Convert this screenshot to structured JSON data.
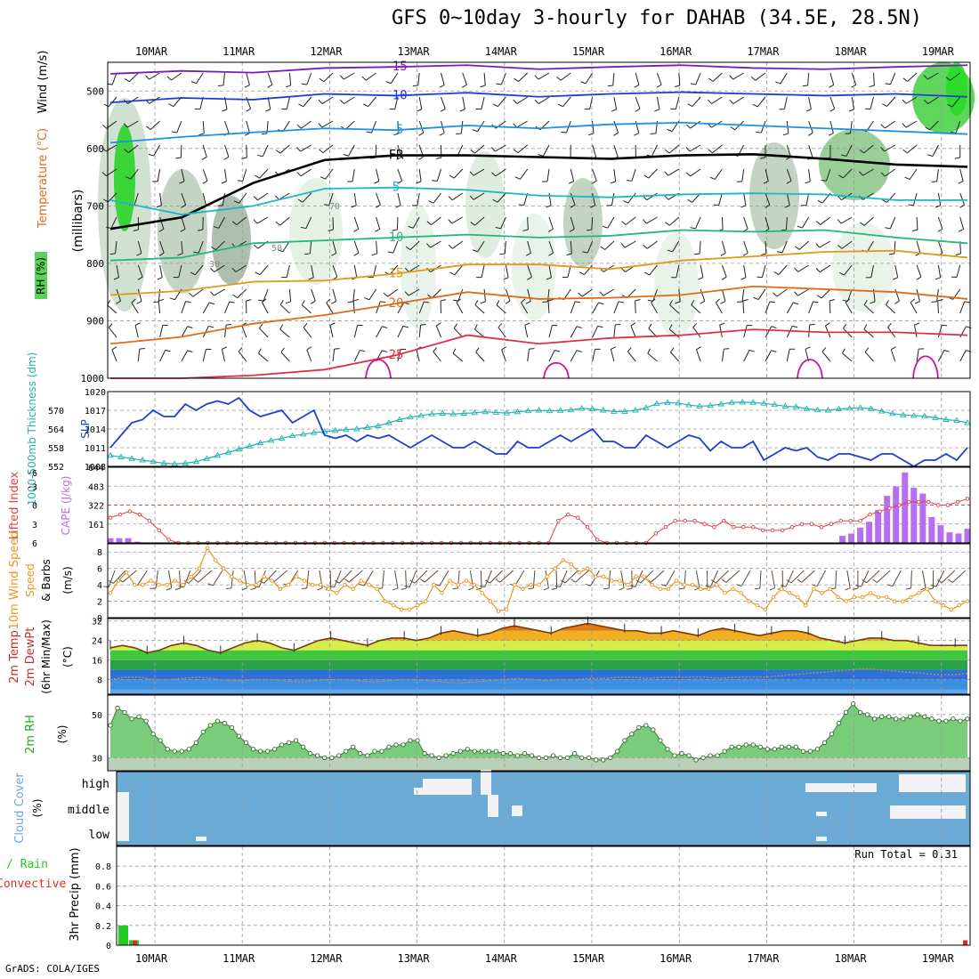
{
  "title": "GFS 0~10day 3-hourly for DAHAB (34.5E, 28.5N)",
  "footer": "GrADS: COLA/IGES",
  "dates": [
    "10MAR",
    "11MAR",
    "12MAR",
    "13MAR",
    "14MAR",
    "15MAR",
    "16MAR",
    "17MAR",
    "18MAR",
    "19MAR"
  ],
  "colors": {
    "grid": "#9a9a9a",
    "temp_minus15": "#7a1ab8",
    "temp_minus10": "#1f3bd6",
    "temp_minus5": "#1e90e6",
    "freezing": "#000000",
    "temp_5": "#20b6c8",
    "temp_10": "#22b87a",
    "temp_15": "#e09a1a",
    "temp_20": "#e06a1a",
    "temp_25": "#e03040",
    "temp_30": "#d0109a",
    "slp": "#1a3fd1",
    "thickness": "#22b2b2",
    "lifted_index": "#e04040",
    "cape": "#b86ef0",
    "wind_speed": "#e8961e",
    "barb": "#5a4a3a",
    "rh_fill": "#7acb7a",
    "cloud": "#6aaad4",
    "precip_total": "#22cc22",
    "precip_conv": "#e03020"
  },
  "chart_data": [
    {
      "panel": "upper_air",
      "type": "heatmap",
      "axis_label": "(millibars)",
      "legend": {
        "wind": "Wind (m/s)",
        "temperature": "Temperature (°C)",
        "rh": "RH (%)"
      },
      "y_ticks": [
        500,
        600,
        700,
        800,
        900,
        1000
      ],
      "ylim": [
        1000,
        450
      ],
      "freezing_label": "FR",
      "isotherms": [
        {
          "value": -15,
          "label": "-15",
          "pressure": [
            470,
            465,
            468,
            460,
            458,
            455,
            462,
            458,
            455,
            460,
            462,
            458,
            455
          ]
        },
        {
          "value": -10,
          "label": "-10",
          "pressure": [
            520,
            512,
            515,
            505,
            508,
            503,
            510,
            505,
            502,
            505,
            508,
            505,
            510
          ]
        },
        {
          "value": -5,
          "label": "-5",
          "pressure": [
            590,
            580,
            572,
            565,
            568,
            560,
            565,
            558,
            555,
            560,
            565,
            570,
            575
          ]
        },
        {
          "value": "FR",
          "label": "FR",
          "pressure": [
            740,
            720,
            660,
            620,
            612,
            612,
            615,
            618,
            612,
            610,
            618,
            628,
            632
          ]
        },
        {
          "value": 5,
          "label": "5",
          "pressure": [
            690,
            715,
            700,
            670,
            668,
            672,
            682,
            685,
            680,
            678,
            680,
            690,
            690
          ]
        },
        {
          "value": 10,
          "label": "10",
          "pressure": [
            795,
            790,
            765,
            760,
            755,
            750,
            755,
            752,
            742,
            745,
            742,
            755,
            765
          ]
        },
        {
          "value": 15,
          "label": "15",
          "pressure": [
            855,
            848,
            832,
            830,
            818,
            802,
            802,
            810,
            795,
            788,
            780,
            778,
            790
          ]
        },
        {
          "value": 20,
          "label": "20",
          "pressure": [
            940,
            928,
            905,
            890,
            870,
            850,
            862,
            860,
            855,
            840,
            845,
            850,
            862
          ]
        },
        {
          "value": 25,
          "label": "25",
          "pressure": [
            1000,
            1000,
            995,
            985,
            960,
            925,
            940,
            930,
            925,
            915,
            920,
            920,
            925
          ]
        }
      ],
      "rh_labels": [
        "30",
        "50",
        "70"
      ]
    },
    {
      "panel": "slp_thickness",
      "type": "line",
      "series": [
        {
          "name": "SLP (mb)",
          "axis": "right_inner",
          "ylim": [
            1008,
            1020
          ],
          "y_ticks": [
            1008,
            1011,
            1014,
            1017,
            1020
          ],
          "values": [
            1011,
            1013,
            1015,
            1015.5,
            1017,
            1016,
            1016,
            1018,
            1017,
            1018,
            1018.5,
            1018,
            1019,
            1017,
            1016,
            1016.5,
            1017,
            1015,
            1016,
            1017,
            1013,
            1012.5,
            1013,
            1012,
            1013,
            1012.5,
            1013,
            1012,
            1011,
            1012,
            1013,
            1012,
            1011,
            1011,
            1012,
            1011,
            1010,
            1010,
            1012,
            1011,
            1011,
            1012,
            1013,
            1012,
            1013,
            1014,
            1012,
            1012,
            1011,
            1011,
            1013,
            1012,
            1011,
            1012,
            1013,
            1012.5,
            1010.5,
            1012,
            1011,
            1011,
            1012,
            1009,
            1010,
            1011,
            1010.5,
            1011,
            1009.5,
            1009,
            1010,
            1010,
            1009.5,
            1009,
            1010,
            1010,
            1009,
            1008,
            1009,
            1009,
            1010,
            1009,
            1011
          ]
        },
        {
          "name": "1000-500mb Thickness (dm)",
          "axis": "left",
          "ylim": [
            552,
            576
          ],
          "y_ticks": [
            552,
            558,
            564,
            570
          ],
          "values": [
            555.5,
            555,
            554.5,
            554,
            553.5,
            553,
            552.8,
            553,
            553.5,
            554.5,
            555.5,
            556.5,
            557.5,
            558.5,
            559.5,
            560.3,
            561,
            561.8,
            562.3,
            562.8,
            563.2,
            563.5,
            563.8,
            564,
            564.5,
            565,
            566,
            567,
            567.8,
            568.3,
            568.8,
            569,
            568.8,
            569,
            569.2,
            569.5,
            569.3,
            569.1,
            569.5,
            569.8,
            570,
            569.8,
            569.9,
            570.1,
            570.6,
            570.4,
            570,
            569.6,
            569.6,
            570,
            570.8,
            572.1,
            572.5,
            572.3,
            571.7,
            571.3,
            571.5,
            572,
            572.5,
            572.6,
            572.5,
            572.2,
            571.8,
            571.3,
            571.1,
            570.5,
            570.1,
            570,
            570.4,
            570.6,
            570.8,
            570.5,
            569.7,
            568.9,
            568.5,
            568.3,
            568.1,
            567.6,
            567,
            566.7,
            566
          ]
        }
      ]
    },
    {
      "panel": "stability",
      "type": "bar",
      "series": [
        {
          "name": "Lifted Index",
          "axis": "left",
          "ylim": [
            6,
            -6
          ],
          "y_ticks": [
            -3,
            0,
            3,
            6
          ],
          "top_tick": "-6",
          "values": [
            2,
            1.5,
            1,
            1.5,
            2.5,
            4,
            5.5,
            6,
            6,
            6,
            6,
            6,
            6,
            6,
            6,
            6,
            6,
            6,
            6,
            6,
            6,
            6,
            6,
            6,
            6,
            6,
            6,
            6,
            6,
            6,
            6,
            6,
            6,
            6,
            6,
            6,
            6,
            6,
            6,
            6,
            6,
            6,
            6,
            6,
            6,
            6,
            2.5,
            1.5,
            2,
            3.5,
            5.5,
            6,
            6,
            6,
            6,
            6,
            4.5,
            3.5,
            2.5,
            2.5,
            2.5,
            3,
            3.5,
            2.5,
            3.5,
            3.5,
            3.5,
            4,
            4,
            4,
            3.5,
            3,
            3,
            3.5,
            3,
            2.5,
            2.5,
            2.5,
            1.5,
            1,
            0.5,
            0,
            -0.5,
            -0.5,
            -0.5,
            0,
            0,
            -0.5,
            -1
          ]
        },
        {
          "name": "CAPE (J/kg)",
          "axis": "right_inner",
          "ylim": [
            0,
            644
          ],
          "y_ticks": [
            161,
            322,
            483,
            644
          ],
          "values": [
            40,
            40,
            40,
            10,
            0,
            0,
            0,
            0,
            0,
            0,
            0,
            0,
            0,
            0,
            0,
            0,
            0,
            0,
            0,
            0,
            0,
            0,
            0,
            0,
            0,
            0,
            0,
            0,
            0,
            0,
            0,
            0,
            0,
            0,
            0,
            0,
            0,
            0,
            0,
            0,
            0,
            0,
            0,
            0,
            0,
            0,
            0,
            0,
            0,
            0,
            0,
            0,
            0,
            0,
            0,
            0,
            0,
            0,
            0,
            0,
            0,
            0,
            0,
            0,
            0,
            0,
            0,
            0,
            0,
            0,
            0,
            0,
            0,
            0,
            0,
            0,
            0,
            0,
            0,
            0,
            0,
            0,
            60,
            80,
            130,
            180,
            280,
            400,
            480,
            600,
            470,
            420,
            220,
            150,
            90,
            80,
            120
          ]
        }
      ],
      "reference_line": 0
    },
    {
      "panel": "wind10m",
      "type": "line",
      "series": [
        {
          "name": "10m Wind Speed (m/s)",
          "ylim": [
            0,
            9
          ],
          "y_ticks": [
            0,
            2,
            4,
            6,
            8
          ],
          "values": [
            3,
            4.5,
            5.5,
            4,
            4,
            4.5,
            4,
            4,
            4.5,
            4,
            5,
            6,
            8.5,
            7,
            6,
            5,
            4.5,
            4,
            4,
            5,
            4.5,
            3.5,
            4,
            5,
            4.5,
            4,
            4,
            3.5,
            3,
            4,
            3.5,
            4.5,
            4,
            3.5,
            2,
            1.5,
            1,
            1,
            1.5,
            2,
            4,
            3,
            4.5,
            4,
            4.5,
            4,
            3,
            2,
            0.8,
            1,
            4,
            3.5,
            4,
            4,
            5,
            6,
            7,
            6.5,
            5.5,
            6,
            5,
            5,
            4.5,
            4.5,
            4,
            5,
            5,
            4,
            3.5,
            3.5,
            4.5,
            4,
            4,
            3.5,
            3.5,
            4,
            3,
            3.5,
            3,
            2,
            1.5,
            1,
            2.5,
            3.5,
            3,
            2.5,
            1.5,
            3.5,
            3,
            3.5,
            2.5,
            2,
            2.5,
            2.5,
            3,
            2.5,
            2.5,
            2,
            2,
            2.5,
            3,
            3.5,
            2,
            1.5,
            1,
            1.5,
            2
          ]
        }
      ],
      "legend": {
        "speed": "10m Wind Speed",
        "barbs": "& Barbs"
      }
    },
    {
      "panel": "temp2m",
      "type": "area",
      "axis_label": "(°C)",
      "legend": {
        "temp": "2m Temp",
        "dewpt": "2m DewPt",
        "minmax": "(6hr Min/Max)"
      },
      "ylim": [
        2,
        33
      ],
      "y_ticks": [
        8,
        16,
        24,
        32
      ],
      "series": [
        {
          "name": "2m Temp",
          "values": [
            21,
            22,
            21,
            19,
            20,
            22,
            23,
            22,
            20,
            19,
            21,
            23,
            24,
            23,
            21,
            20,
            22,
            24,
            25,
            24,
            23,
            22,
            24,
            25,
            25,
            24,
            25,
            27,
            28,
            27,
            26,
            27,
            29,
            30,
            29,
            28,
            27,
            29,
            30,
            31,
            30,
            29,
            28,
            28,
            27,
            27,
            28,
            27,
            26,
            28,
            29,
            28,
            27,
            26,
            27,
            28,
            28,
            27,
            25,
            24,
            23,
            24,
            25,
            25,
            24,
            24,
            23,
            22,
            22,
            22,
            22
          ]
        },
        {
          "name": "2m DewPt",
          "values": [
            8,
            9,
            9,
            8,
            8,
            8.5,
            9,
            8.5,
            7.5,
            7.5,
            8,
            8,
            7.5,
            7,
            7.5,
            8,
            8,
            7.5,
            7,
            7.5,
            8,
            8,
            7.5,
            7,
            6.5,
            7,
            7.5,
            8,
            8.5,
            8,
            7.5,
            8,
            8,
            8.5,
            8.5,
            9,
            9,
            8.5,
            9,
            9,
            9,
            9,
            8.5,
            9,
            9,
            9,
            9.5,
            10,
            10.5,
            11,
            11.5,
            12,
            12.5,
            12,
            11.5,
            11,
            10.5,
            10,
            10,
            10.5
          ]
        }
      ]
    },
    {
      "panel": "rh2m",
      "type": "area",
      "axis_label": "(%)",
      "legend": "2m RH",
      "ylim": [
        24,
        59
      ],
      "y_ticks": [
        30,
        50
      ],
      "series": [
        {
          "name": "2m RH",
          "values": [
            45,
            53,
            51,
            48,
            49,
            47,
            41,
            38,
            34,
            33,
            33,
            34,
            37,
            42,
            45,
            47,
            46,
            44,
            40,
            37,
            34,
            33,
            33,
            34,
            36,
            37,
            38,
            35,
            32,
            31,
            30,
            30,
            31,
            33,
            35,
            32,
            31,
            33,
            33,
            35,
            36,
            36,
            38,
            38,
            32,
            31,
            30,
            31,
            32,
            33,
            34,
            33,
            33,
            33,
            33,
            32,
            32,
            31,
            32,
            31,
            30,
            30,
            31,
            30,
            30,
            32,
            30,
            30,
            29,
            29,
            30,
            33,
            38,
            41,
            44,
            45,
            43,
            38,
            34,
            31,
            32,
            31,
            29,
            30,
            31,
            31,
            33,
            35,
            35,
            36,
            36,
            35,
            34,
            34,
            35,
            35,
            35,
            33,
            33,
            34,
            37,
            41,
            46,
            51,
            55,
            51,
            50,
            48,
            49,
            49,
            48,
            48,
            49,
            50,
            49,
            48,
            47,
            47,
            48,
            47,
            48
          ]
        }
      ]
    },
    {
      "panel": "cloud_cover",
      "type": "bar",
      "axis_label": "(%)",
      "legend": "Cloud Cover",
      "levels": [
        "high",
        "middle",
        "low"
      ]
    },
    {
      "panel": "precip",
      "type": "bar",
      "axis_label": "(mm)",
      "legend": {
        "total": "Total / Rain",
        "conv": "Convective",
        "precip": "3hr Precip"
      },
      "ylim": [
        0,
        1
      ],
      "y_ticks": [
        0,
        0.2,
        0.4,
        0.6,
        0.8
      ],
      "run_total_label": "Run Total = 0.31",
      "series": [
        {
          "name": "Total / Rain",
          "values": [
            0.2,
            0.05
          ]
        },
        {
          "name": "Convective",
          "values": [
            0,
            0.05
          ]
        }
      ]
    }
  ]
}
